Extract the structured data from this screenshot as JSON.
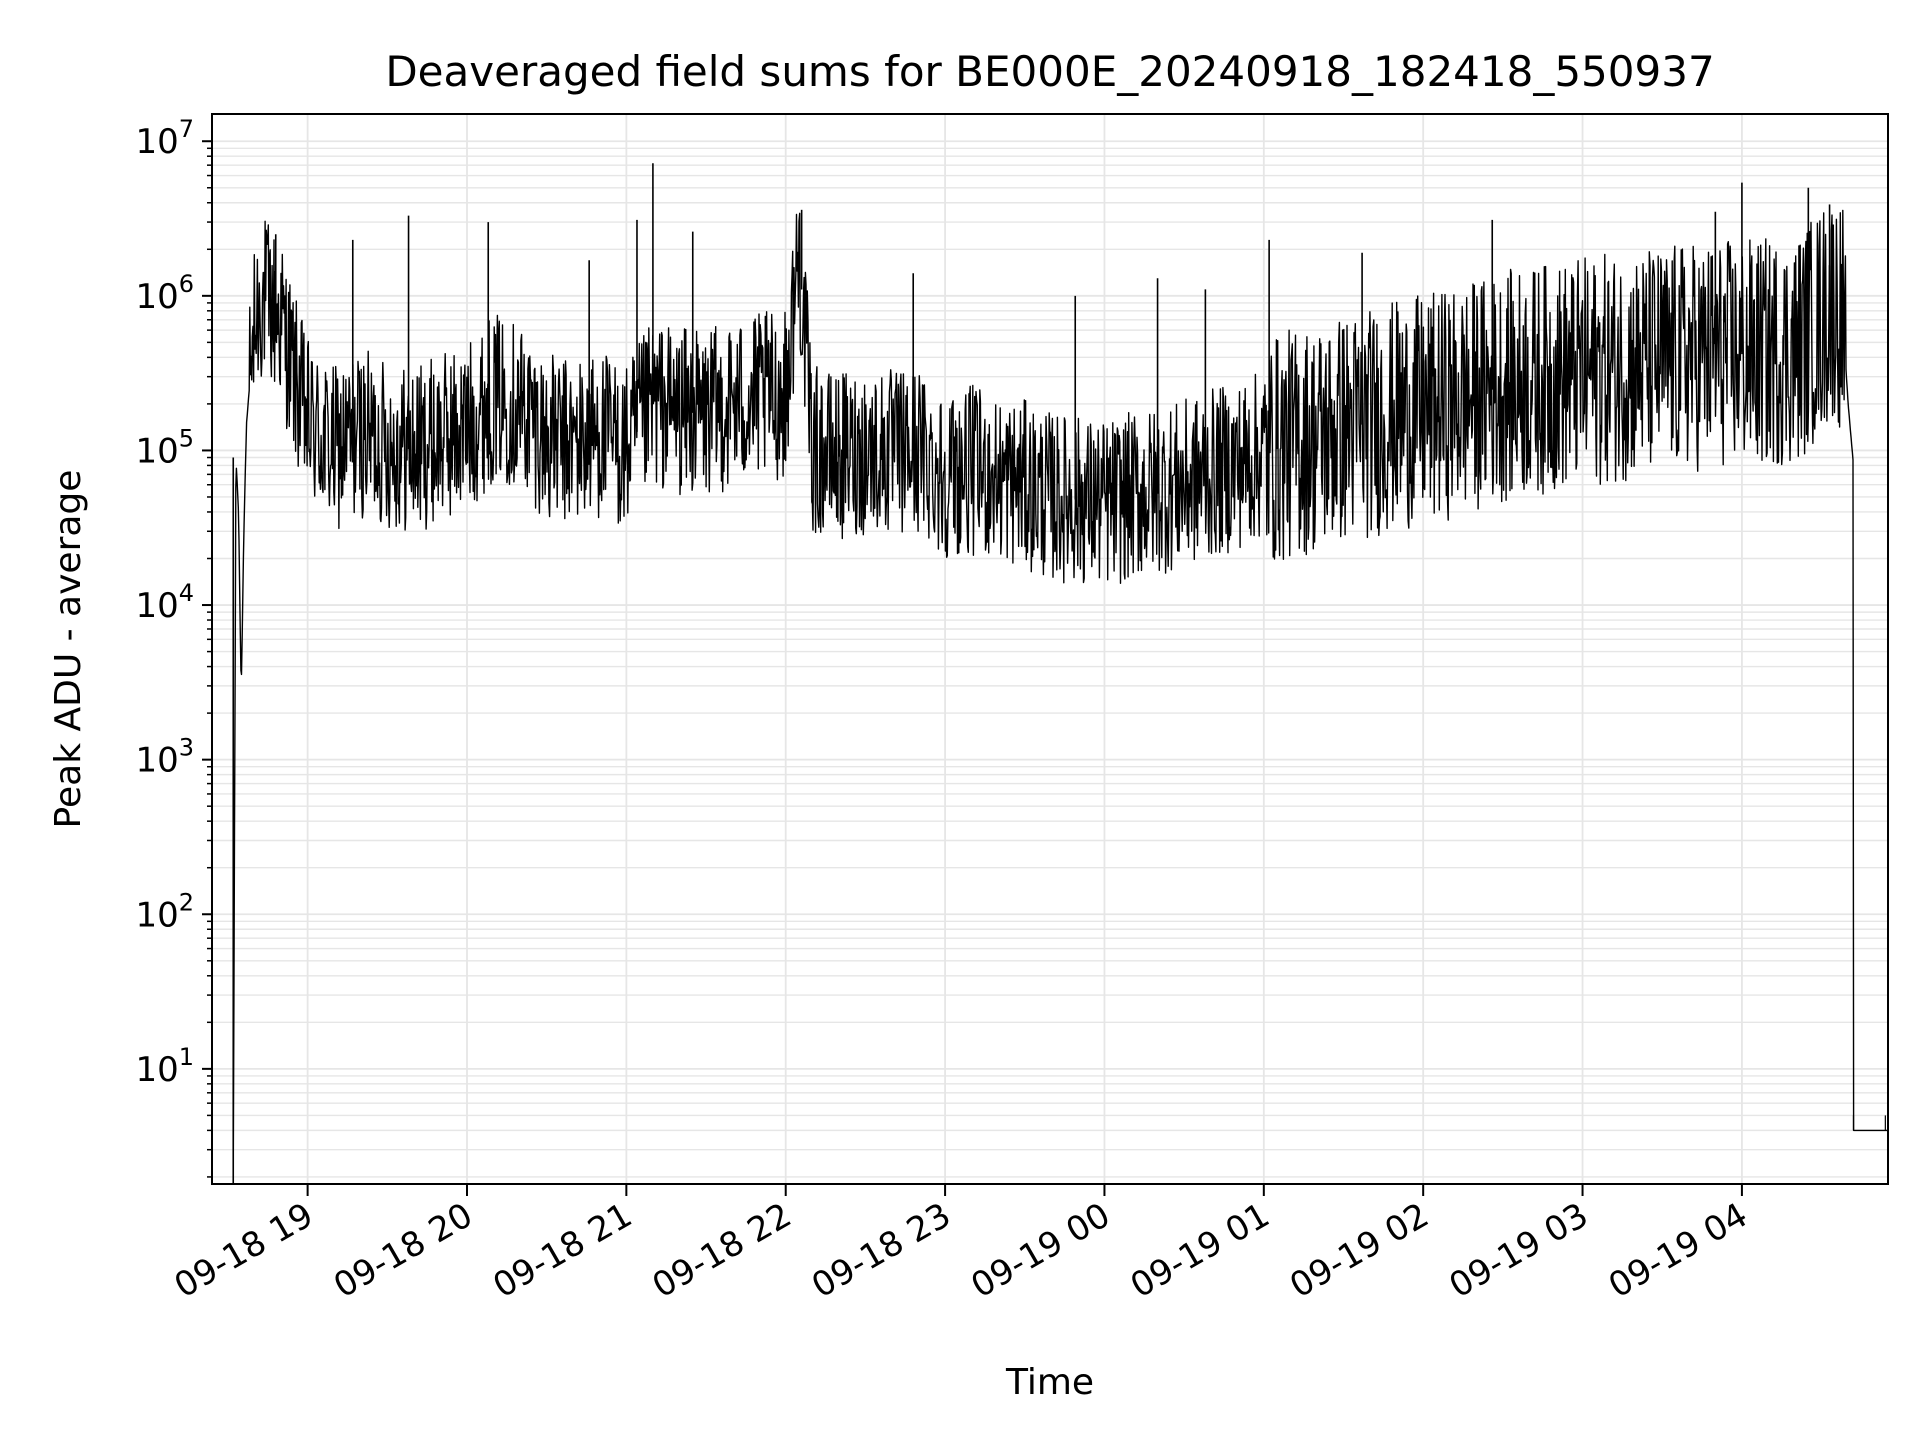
{
  "chart_data": {
    "type": "line",
    "title": "Deaveraged field sums for BE000E_20240918_182418_550937",
    "xlabel": "Time",
    "ylabel": "Peak ADU - average",
    "yscale": "log",
    "grid": true,
    "line_color": "#000000",
    "grid_color": "#e6e6e6",
    "xlim": [
      "2024-09-18 18:24",
      "2024-09-19 04:55"
    ],
    "ylim": [
      1.8,
      15000000
    ],
    "x_ticks": [
      "09-18 19",
      "09-18 20",
      "09-18 21",
      "09-18 22",
      "09-18 23",
      "09-19 00",
      "09-19 01",
      "09-19 02",
      "09-19 03",
      "09-19 04"
    ],
    "y_ticks": [
      {
        "base": "10",
        "exp": "1"
      },
      {
        "base": "10",
        "exp": "2"
      },
      {
        "base": "10",
        "exp": "3"
      },
      {
        "base": "10",
        "exp": "4"
      },
      {
        "base": "10",
        "exp": "5"
      },
      {
        "base": "10",
        "exp": "6"
      },
      {
        "base": "10",
        "exp": "7"
      }
    ],
    "series": [
      {
        "x": [
          "2024-09-18 18:32",
          "2024-09-18 18:33",
          "2024-09-18 18:34",
          "2024-09-18 18:35",
          "2024-09-18 18:36",
          "2024-09-18 18:37",
          "2024-09-18 18:39",
          "2024-09-18 18:41",
          "2024-09-18 18:43",
          "2024-09-18 18:46",
          "2024-09-18 18:50",
          "2024-09-18 18:55",
          "2024-09-18 19:00",
          "2024-09-18 19:10",
          "2024-09-18 19:20",
          "2024-09-18 19:30",
          "2024-09-18 19:40",
          "2024-09-18 19:50",
          "2024-09-18 20:00",
          "2024-09-18 20:10",
          "2024-09-18 20:20",
          "2024-09-18 20:30",
          "2024-09-18 20:40",
          "2024-09-18 20:50",
          "2024-09-18 21:00",
          "2024-09-18 21:10",
          "2024-09-18 21:20",
          "2024-09-18 21:30",
          "2024-09-18 21:40",
          "2024-09-18 21:50",
          "2024-09-18 22:00",
          "2024-09-18 22:05",
          "2024-09-18 22:10",
          "2024-09-18 22:20",
          "2024-09-18 22:30",
          "2024-09-18 22:40",
          "2024-09-18 22:50",
          "2024-09-18 23:00",
          "2024-09-18 23:10",
          "2024-09-18 23:20",
          "2024-09-18 23:30",
          "2024-09-18 23:40",
          "2024-09-18 23:50",
          "2024-09-19 00:00",
          "2024-09-19 00:10",
          "2024-09-19 00:20",
          "2024-09-19 00:30",
          "2024-09-19 00:40",
          "2024-09-19 00:50",
          "2024-09-19 01:00",
          "2024-09-19 01:10",
          "2024-09-19 01:20",
          "2024-09-19 01:30",
          "2024-09-19 01:40",
          "2024-09-19 01:50",
          "2024-09-19 02:00",
          "2024-09-19 02:10",
          "2024-09-19 02:20",
          "2024-09-19 02:30",
          "2024-09-19 02:40",
          "2024-09-19 02:50",
          "2024-09-19 03:00",
          "2024-09-19 03:10",
          "2024-09-19 03:20",
          "2024-09-19 03:30",
          "2024-09-19 03:40",
          "2024-09-19 03:50",
          "2024-09-19 04:00",
          "2024-09-19 04:10",
          "2024-09-19 04:20",
          "2024-09-19 04:30",
          "2024-09-19 04:35",
          "2024-09-19 04:38",
          "2024-09-19 04:40",
          "2024-09-19 04:42",
          "2024-09-19 04:48",
          "2024-09-19 04:55"
        ],
        "y": [
          2,
          90000,
          40000,
          2700,
          30000,
          150000,
          400000,
          800000,
          1000000,
          850000,
          700000,
          300000,
          150000,
          100000,
          130000,
          110000,
          100000,
          120000,
          140000,
          220000,
          200000,
          120000,
          110000,
          130000,
          100000,
          200000,
          180000,
          170000,
          200000,
          220000,
          230000,
          2000000,
          100000,
          90000,
          100000,
          95000,
          100000,
          70000,
          75000,
          65000,
          60000,
          50000,
          48000,
          45000,
          50000,
          55000,
          60000,
          70000,
          80000,
          95000,
          110000,
          120000,
          140000,
          150000,
          170000,
          180000,
          200000,
          230000,
          260000,
          280000,
          300000,
          320000,
          340000,
          360000,
          380000,
          400000,
          420000,
          420000,
          430000,
          440000,
          700000,
          900000,
          700000,
          200000,
          80000,
          4,
          4
        ]
      }
    ],
    "spikes": [
      {
        "x": "2024-09-18 18:48",
        "y": 2500000
      },
      {
        "x": "2024-09-18 19:17",
        "y": 2300000
      },
      {
        "x": "2024-09-18 19:38",
        "y": 3300000
      },
      {
        "x": "2024-09-18 20:08",
        "y": 3000000
      },
      {
        "x": "2024-09-18 20:46",
        "y": 1700000
      },
      {
        "x": "2024-09-18 21:04",
        "y": 3100000
      },
      {
        "x": "2024-09-18 21:10",
        "y": 7200000
      },
      {
        "x": "2024-09-18 21:25",
        "y": 2600000
      },
      {
        "x": "2024-09-18 22:06",
        "y": 3600000
      },
      {
        "x": "2024-09-18 22:48",
        "y": 1400000
      },
      {
        "x": "2024-09-18 23:49",
        "y": 1000000
      },
      {
        "x": "2024-09-19 00:20",
        "y": 1300000
      },
      {
        "x": "2024-09-19 00:38",
        "y": 1100000
      },
      {
        "x": "2024-09-19 01:02",
        "y": 2300000
      },
      {
        "x": "2024-09-19 01:37",
        "y": 1900000
      },
      {
        "x": "2024-09-19 02:26",
        "y": 3100000
      },
      {
        "x": "2024-09-19 03:50",
        "y": 3500000
      },
      {
        "x": "2024-09-19 04:00",
        "y": 5400000
      },
      {
        "x": "2024-09-19 04:25",
        "y": 5000000
      },
      {
        "x": "2024-09-19 04:33",
        "y": 3900000
      }
    ]
  }
}
